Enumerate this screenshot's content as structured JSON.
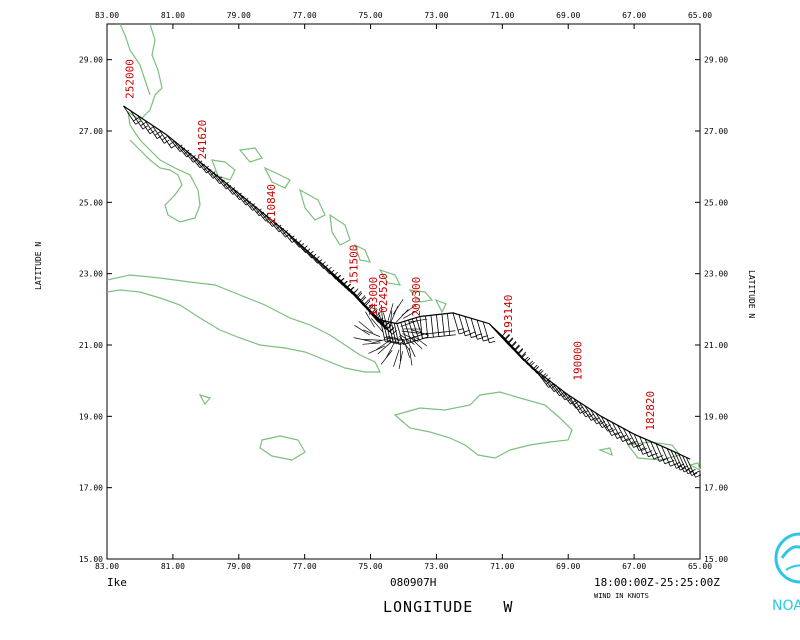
{
  "map": {
    "storm_name": "Ike",
    "date_label": "080907H",
    "time_range": "18:00:00Z-25:25:00Z",
    "wind_units": "WIND IN KNOTS",
    "xlabel": "LONGITUDE   W",
    "ylabel": "LATITUDE   N",
    "logo_text": "NOAA",
    "colors": {
      "land": "#7dbf7d",
      "track": "#000000",
      "labels": "#cc0000",
      "logo": "#2ec6e6"
    },
    "lon_ticks": [
      "83.00",
      "81.00",
      "79.00",
      "77.00",
      "75.00",
      "73.00",
      "71.00",
      "69.00",
      "67.00",
      "65.00"
    ],
    "lat_ticks": [
      "15.00",
      "17.00",
      "19.00",
      "21.00",
      "23.00",
      "25.00",
      "27.00",
      "29.00"
    ]
  },
  "chart_data": {
    "type": "scatter",
    "title": "",
    "xlabel": "LONGITUDE   W",
    "ylabel": "LATITUDE   N",
    "xlim": [
      83,
      65
    ],
    "ylim": [
      15,
      30
    ],
    "track": [
      [
        82.5,
        27.7
      ],
      [
        81.2,
        26.9
      ],
      [
        80.0,
        26.0
      ],
      [
        78.8,
        25.1
      ],
      [
        77.6,
        24.2
      ],
      [
        76.5,
        23.3
      ],
      [
        75.9,
        22.8
      ],
      [
        75.2,
        22.1
      ],
      [
        74.7,
        21.7
      ],
      [
        74.2,
        21.6
      ],
      [
        73.5,
        21.8
      ],
      [
        72.5,
        21.9
      ],
      [
        71.4,
        21.6
      ],
      [
        70.8,
        21.0
      ],
      [
        70.0,
        20.3
      ],
      [
        69.0,
        19.6
      ],
      [
        68.0,
        19.0
      ],
      [
        67.0,
        18.5
      ],
      [
        66.0,
        18.1
      ],
      [
        65.3,
        17.8
      ]
    ],
    "time_labels": [
      {
        "text": "252000",
        "lon": 82.2,
        "lat": 27.9
      },
      {
        "text": "241620",
        "lon": 80.0,
        "lat": 26.2
      },
      {
        "text": "210840",
        "lon": 77.9,
        "lat": 24.4
      },
      {
        "text": "151500",
        "lon": 75.4,
        "lat": 22.7
      },
      {
        "text": "143000",
        "lon": 74.8,
        "lat": 21.8
      },
      {
        "text": "024520",
        "lon": 74.5,
        "lat": 21.9
      },
      {
        "text": "200300",
        "lon": 73.5,
        "lat": 21.8
      },
      {
        "text": "193140",
        "lon": 70.7,
        "lat": 21.3
      },
      {
        "text": "190000",
        "lon": 68.6,
        "lat": 20.0
      },
      {
        "text": "182820",
        "lon": 66.4,
        "lat": 18.6
      }
    ]
  }
}
